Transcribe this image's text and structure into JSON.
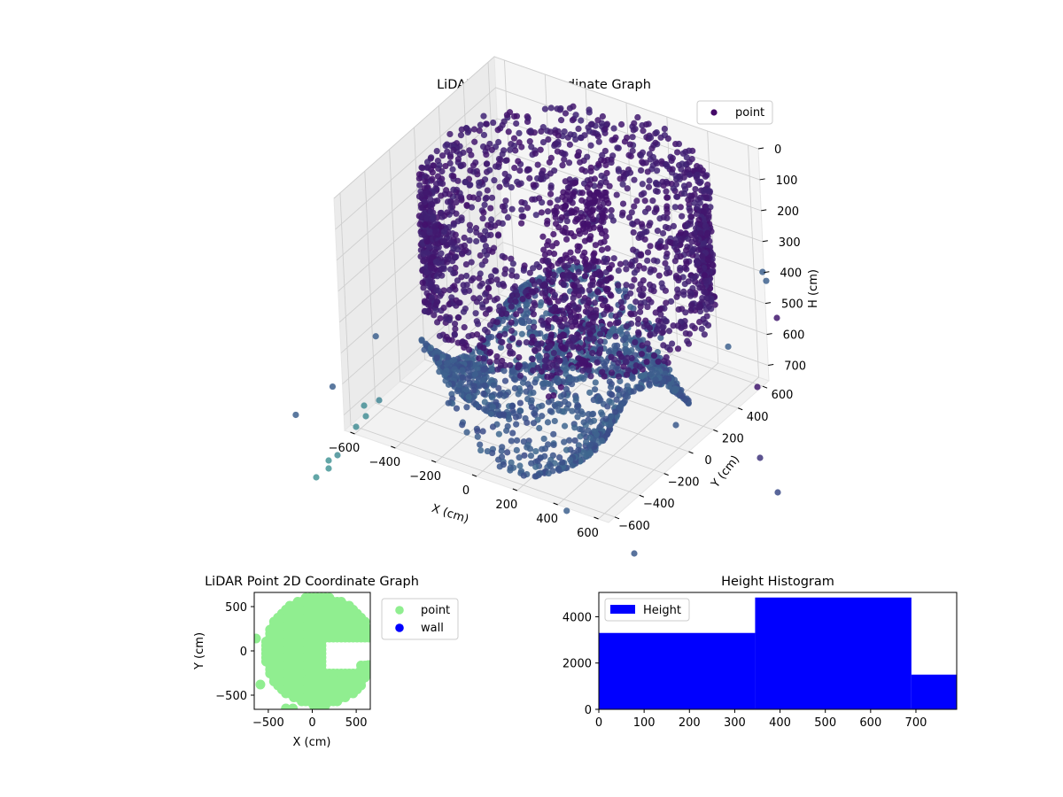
{
  "chart_data": [
    {
      "type": "scatter3d",
      "title": "LiDAR Point 3D Coordinate Graph",
      "xlabel": "X (cm)",
      "ylabel": "Y (cm)",
      "zlabel": "H (cm)",
      "xticks": [
        "−600",
        "−400",
        "−200",
        "0",
        "200",
        "400",
        "600"
      ],
      "yticks": [
        "600",
        "400",
        "200",
        "0",
        "−200",
        "−400",
        "−600"
      ],
      "zticks": [
        "0",
        "100",
        "200",
        "300",
        "400",
        "500",
        "600",
        "700"
      ],
      "xlim": [
        -650,
        650
      ],
      "ylim": [
        -650,
        650
      ],
      "zlim": [
        750,
        0
      ],
      "zlim_note": "H axis inverted",
      "legend": [
        {
          "label": "point",
          "color": "#440a68"
        }
      ],
      "legend_loc": "top-right",
      "colormap": "viridis",
      "grid": true,
      "structure": {
        "wall_ring": {
          "center": [
            60,
            40
          ],
          "radius": 610,
          "h_range": [
            30,
            420
          ]
        },
        "floor": {
          "radius": 560,
          "h_range": [
            520,
            760
          ]
        },
        "inner_wall": {
          "x": 20,
          "y_range": [
            -100,
            420
          ],
          "h_range": [
            80,
            700
          ]
        },
        "outliers": [
          {
            "x": -820,
            "y": -760,
            "h": 700
          },
          {
            "x": -700,
            "y": -650,
            "h": 620
          },
          {
            "x": -620,
            "y": -420,
            "h": 520
          },
          {
            "x": 820,
            "y": 400,
            "h": 300
          },
          {
            "x": 900,
            "y": 250,
            "h": 200
          },
          {
            "x": 1000,
            "y": -200,
            "h": 260
          },
          {
            "x": 700,
            "y": -1050,
            "h": 560
          }
        ]
      }
    },
    {
      "type": "scatter",
      "title": "LiDAR Point 2D Coordinate Graph",
      "xlabel": "X (cm)",
      "ylabel": "Y (cm)",
      "xticks": [
        "−500",
        "0",
        "500"
      ],
      "yticks": [
        "500",
        "0",
        "−500"
      ],
      "xlim": [
        -660,
        660
      ],
      "ylim": [
        -660,
        660
      ],
      "series": [
        {
          "name": "point",
          "color": "#90ee90",
          "disk": {
            "center": [
              80,
              0
            ],
            "radius": 620
          },
          "notch": {
            "x": [
              120,
              660
            ],
            "y": [
              -220,
              120
            ]
          }
        },
        {
          "name": "wall",
          "color": "#0000ff",
          "points": []
        }
      ],
      "legend_loc": "outside-right"
    },
    {
      "type": "histogram",
      "title": "Height Histogram",
      "xticks": [
        "0",
        "100",
        "200",
        "300",
        "400",
        "500",
        "600",
        "700"
      ],
      "yticks": [
        "0",
        "2000",
        "4000"
      ],
      "xlim": [
        0,
        790
      ],
      "ylim": [
        0,
        5050
      ],
      "series": [
        {
          "name": "Height",
          "color": "#0000ff"
        }
      ],
      "bins": [
        {
          "x0": 0,
          "x1": 345,
          "count": 3300
        },
        {
          "x0": 345,
          "x1": 690,
          "count": 4830
        },
        {
          "x0": 690,
          "x1": 790,
          "count": 1500
        }
      ],
      "legend_loc": "upper-left"
    }
  ]
}
